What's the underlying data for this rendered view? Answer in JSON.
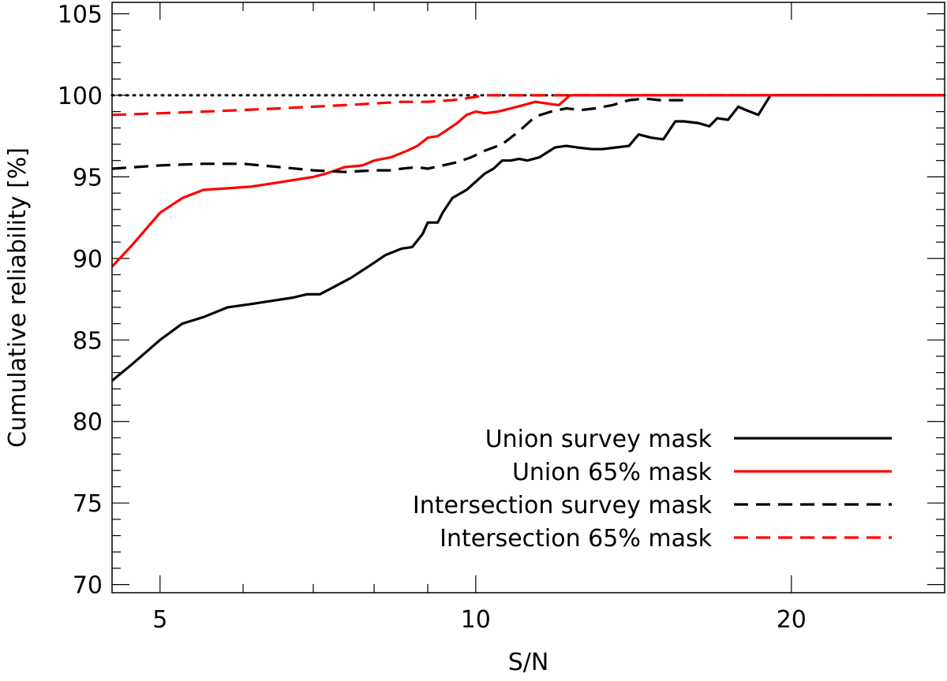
{
  "chart_data": {
    "type": "line",
    "xlabel": "S/N",
    "ylabel": "Cumulative reliability [%]",
    "x_scale": "log",
    "xlim": [
      4.5,
      28
    ],
    "ylim": [
      69.5,
      105.7
    ],
    "x_ticks_major": [
      5,
      10,
      20
    ],
    "x_ticks_minor": [
      6,
      7,
      8,
      9,
      30
    ],
    "y_ticks_major": [
      70,
      75,
      80,
      85,
      90,
      95,
      100,
      105
    ],
    "y_ticks_minor_step": 1,
    "grid": false,
    "legend_position": "bottom-right",
    "reference_line": {
      "y": 100,
      "style": "dotted",
      "color": "#000000"
    },
    "series": [
      {
        "name": "Union survey mask",
        "color": "#000000",
        "dash": "solid",
        "x": [
          4.5,
          4.7,
          5.0,
          5.25,
          5.5,
          5.8,
          6.1,
          6.4,
          6.7,
          6.9,
          7.1,
          7.3,
          7.6,
          7.9,
          8.2,
          8.5,
          8.7,
          8.9,
          9.0,
          9.2,
          9.3,
          9.5,
          9.8,
          10.0,
          10.2,
          10.4,
          10.6,
          10.8,
          11.0,
          11.2,
          11.5,
          11.9,
          12.2,
          12.5,
          12.9,
          13.2,
          13.6,
          14.0,
          14.3,
          14.7,
          15.1,
          15.5,
          15.8,
          16.3,
          16.7,
          17.0,
          17.4,
          17.8,
          18.1,
          18.6,
          19.1,
          19.6,
          20.0,
          20.4,
          20.8,
          21.3,
          21.8,
          22.3,
          23.0,
          25.0,
          28.0
        ],
        "y": [
          82.5,
          83.5,
          85.0,
          86.0,
          86.4,
          87.0,
          87.2,
          87.4,
          87.6,
          87.8,
          87.8,
          88.2,
          88.8,
          89.5,
          90.2,
          90.6,
          90.7,
          91.5,
          92.2,
          92.2,
          92.8,
          93.7,
          94.2,
          94.7,
          95.2,
          95.5,
          96.0,
          96.0,
          96.1,
          96.0,
          96.2,
          96.8,
          96.9,
          96.8,
          96.7,
          96.7,
          96.8,
          96.9,
          97.6,
          97.4,
          97.3,
          98.4,
          98.4,
          98.3,
          98.1,
          98.6,
          98.5,
          99.3,
          99.1,
          98.8,
          100.0,
          100.0,
          100.0,
          100.0,
          100.0,
          100.0,
          100.0,
          100.0,
          100.0,
          100.0,
          100.0
        ]
      },
      {
        "name": "Union 65% mask",
        "color": "#ff0000",
        "dash": "solid",
        "x": [
          4.5,
          4.7,
          5.0,
          5.25,
          5.5,
          5.8,
          6.1,
          6.4,
          6.7,
          7.0,
          7.2,
          7.5,
          7.8,
          8.0,
          8.3,
          8.6,
          8.8,
          9.0,
          9.2,
          9.4,
          9.6,
          9.8,
          10.0,
          10.2,
          10.5,
          10.8,
          11.1,
          11.4,
          11.7,
          12.0,
          12.3,
          12.6,
          13.0,
          13.3,
          13.6,
          14.0,
          15.0,
          18.0,
          28.0
        ],
        "y": [
          89.5,
          90.8,
          92.8,
          93.7,
          94.2,
          94.3,
          94.4,
          94.6,
          94.8,
          95.0,
          95.2,
          95.6,
          95.7,
          96.0,
          96.2,
          96.6,
          96.9,
          97.4,
          97.5,
          97.9,
          98.3,
          98.8,
          99.0,
          98.9,
          99.0,
          99.2,
          99.4,
          99.6,
          99.5,
          99.4,
          100.0,
          100.0,
          100.0,
          100.0,
          100.0,
          100.0,
          100.0,
          100.0,
          100.0
        ]
      },
      {
        "name": "Intersection survey mask",
        "color": "#000000",
        "dash": "dashed",
        "x": [
          4.5,
          5.0,
          5.5,
          6.0,
          6.5,
          7.0,
          7.5,
          8.0,
          8.3,
          8.5,
          8.8,
          9.0,
          9.3,
          9.6,
          9.9,
          10.2,
          10.6,
          11.0,
          11.4,
          11.8,
          12.2,
          12.6,
          13.0,
          13.5,
          14.0,
          14.5,
          15.0,
          15.5,
          16.0
        ],
        "y": [
          95.5,
          95.7,
          95.8,
          95.8,
          95.6,
          95.4,
          95.3,
          95.4,
          95.4,
          95.5,
          95.6,
          95.5,
          95.7,
          95.9,
          96.2,
          96.6,
          97.0,
          97.8,
          98.7,
          99.0,
          99.2,
          99.1,
          99.2,
          99.4,
          99.7,
          99.8,
          99.7,
          99.7,
          99.7
        ]
      },
      {
        "name": "Intersection 65% mask",
        "color": "#ff0000",
        "dash": "dashed",
        "x": [
          4.5,
          5.0,
          5.5,
          6.0,
          6.5,
          7.0,
          7.5,
          8.0,
          8.5,
          9.0,
          9.5,
          10.0,
          10.2,
          10.5,
          11.0,
          12.0,
          14.0,
          20.0,
          28.0
        ],
        "y": [
          98.8,
          98.9,
          99.0,
          99.1,
          99.2,
          99.3,
          99.4,
          99.5,
          99.6,
          99.6,
          99.7,
          99.9,
          100.0,
          100.0,
          100.0,
          100.0,
          100.0,
          100.0,
          100.0
        ]
      }
    ]
  }
}
